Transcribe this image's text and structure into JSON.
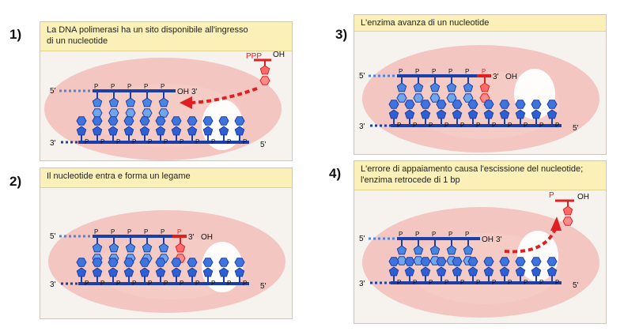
{
  "steps": [
    {
      "number": "1)",
      "caption_lines": [
        "La DNA polimerasi ha un sito disponibile all'ingresso",
        "di un nucleotide"
      ],
      "new_nucleotide_label": "PPP",
      "new_nucleotide_oh": "OH",
      "top_strand_5": "5'",
      "top_strand_3": "3'",
      "top_strand_oh": "OH",
      "bottom_strand_3": "3'",
      "bottom_strand_5": "5'",
      "phosphate": "P"
    },
    {
      "number": "2)",
      "caption_lines": [
        "Il nucleotide entra e forma un legame"
      ],
      "top_strand_5": "5'",
      "top_strand_3": "3'",
      "top_strand_oh": "OH",
      "bottom_strand_3": "3'",
      "bottom_strand_5": "5'",
      "phosphate": "P"
    },
    {
      "number": "3)",
      "caption_lines": [
        "L'enzima avanza di un nucleotide"
      ],
      "top_strand_5": "5'",
      "top_strand_3": "3'",
      "top_strand_oh": "OH",
      "bottom_strand_3": "3'",
      "bottom_strand_5": "5'",
      "phosphate": "P"
    },
    {
      "number": "4)",
      "caption_lines": [
        "L'errore di appaiamento causa l'escissione del nucleotide;",
        "l'enzima retrocede di 1 bp"
      ],
      "excised_label": "P",
      "excised_oh": "OH",
      "top_strand_5": "5'",
      "top_strand_3": "3'",
      "top_strand_oh": "OH",
      "bottom_strand_3": "3'",
      "bottom_strand_5": "5'",
      "phosphate": "P"
    }
  ],
  "colors": {
    "strand_blue": "#1a3fa8",
    "strand_light": "#4a86e0",
    "nucleotide_red": "#e02020",
    "enzyme_pink": "#f2b7b2",
    "caption_bg": "#fbf0b8"
  }
}
